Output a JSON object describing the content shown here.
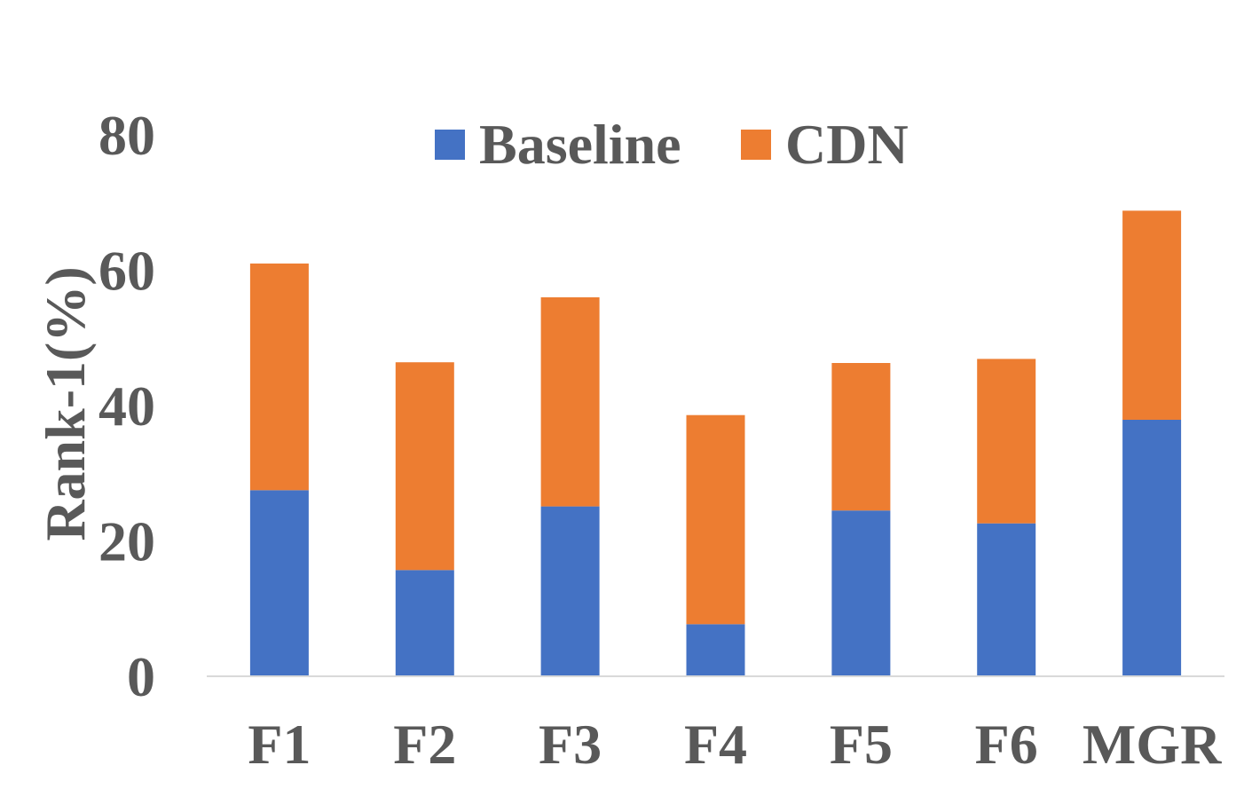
{
  "chart_data": {
    "type": "bar",
    "stacked": true,
    "title": "",
    "xlabel": "",
    "ylabel": "Rank-1(%)",
    "ylim": [
      0,
      80
    ],
    "yticks": [
      "0",
      "20",
      "40",
      "60",
      "80"
    ],
    "grid": false,
    "legend_position": "top",
    "categories": [
      "F1",
      "F2",
      "F3",
      "F4",
      "F5",
      "F6",
      "MGR"
    ],
    "series": [
      {
        "name": "Baseline",
        "color": "#4472C4",
        "values": [
          27.5,
          15.7,
          25.1,
          7.7,
          24.5,
          22.6,
          37.9
        ]
      },
      {
        "name": "CDN",
        "color": "#ED7D31",
        "values": [
          33.5,
          30.7,
          30.9,
          30.9,
          21.8,
          24.3,
          30.9
        ]
      }
    ],
    "axis_color": "#D9D9D9",
    "text_color": "#595959"
  }
}
